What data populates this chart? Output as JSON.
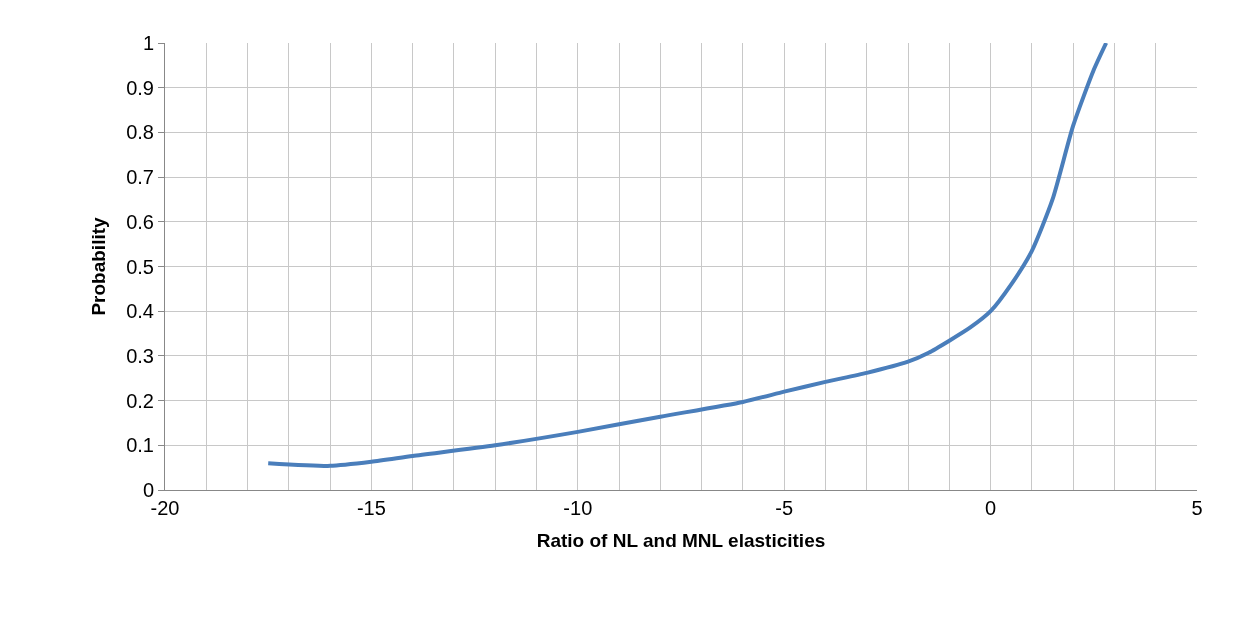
{
  "chart_data": {
    "type": "line",
    "xlabel": "Ratio of NL and MNL elasticities",
    "ylabel": "Probability",
    "x": [
      -17.5,
      -16,
      -15,
      -14,
      -12,
      -10,
      -8,
      -6,
      -5,
      -4,
      -3,
      -2,
      -1.5,
      -1,
      -0.5,
      0,
      0.5,
      1,
      1.5,
      2,
      2.5,
      2.8
    ],
    "series": [
      {
        "color": "#4a7ebb",
        "values": [
          0.06,
          0.054,
          0.063,
          0.076,
          0.1,
          0.13,
          0.164,
          0.197,
          0.22,
          0.242,
          0.262,
          0.287,
          0.307,
          0.334,
          0.363,
          0.4,
          0.46,
          0.535,
          0.65,
          0.815,
          0.94,
          1.0
        ]
      }
    ],
    "xlim": [
      -20,
      5
    ],
    "xticks": [
      -20,
      {
        "value": -19,
        "label": null
      },
      {
        "value": -18,
        "label": null
      },
      {
        "value": -17,
        "label": null
      },
      {
        "value": -16,
        "label": null
      },
      -15,
      {
        "value": -14,
        "label": null
      },
      {
        "value": -13,
        "label": null
      },
      {
        "value": -12,
        "label": null
      },
      {
        "value": -11,
        "label": null
      },
      -10,
      {
        "value": -9,
        "label": null
      },
      {
        "value": -8,
        "label": null
      },
      {
        "value": -7,
        "label": null
      },
      {
        "value": -6,
        "label": null
      },
      -5,
      {
        "value": -4,
        "label": null
      },
      {
        "value": -3,
        "label": null
      },
      {
        "value": -2,
        "label": null
      },
      {
        "value": -1,
        "label": null
      },
      0,
      {
        "value": 1,
        "label": null
      },
      {
        "value": 2,
        "label": null
      },
      {
        "value": 3,
        "label": null
      },
      {
        "value": 4,
        "label": null
      },
      5
    ],
    "ylim": [
      0,
      1
    ],
    "yticks": [
      0,
      0.1,
      0.2,
      0.3,
      0.4,
      0.5,
      0.6,
      0.7,
      0.8,
      0.9,
      1
    ],
    "grid": true,
    "marker": "none",
    "line_style": "solid"
  }
}
